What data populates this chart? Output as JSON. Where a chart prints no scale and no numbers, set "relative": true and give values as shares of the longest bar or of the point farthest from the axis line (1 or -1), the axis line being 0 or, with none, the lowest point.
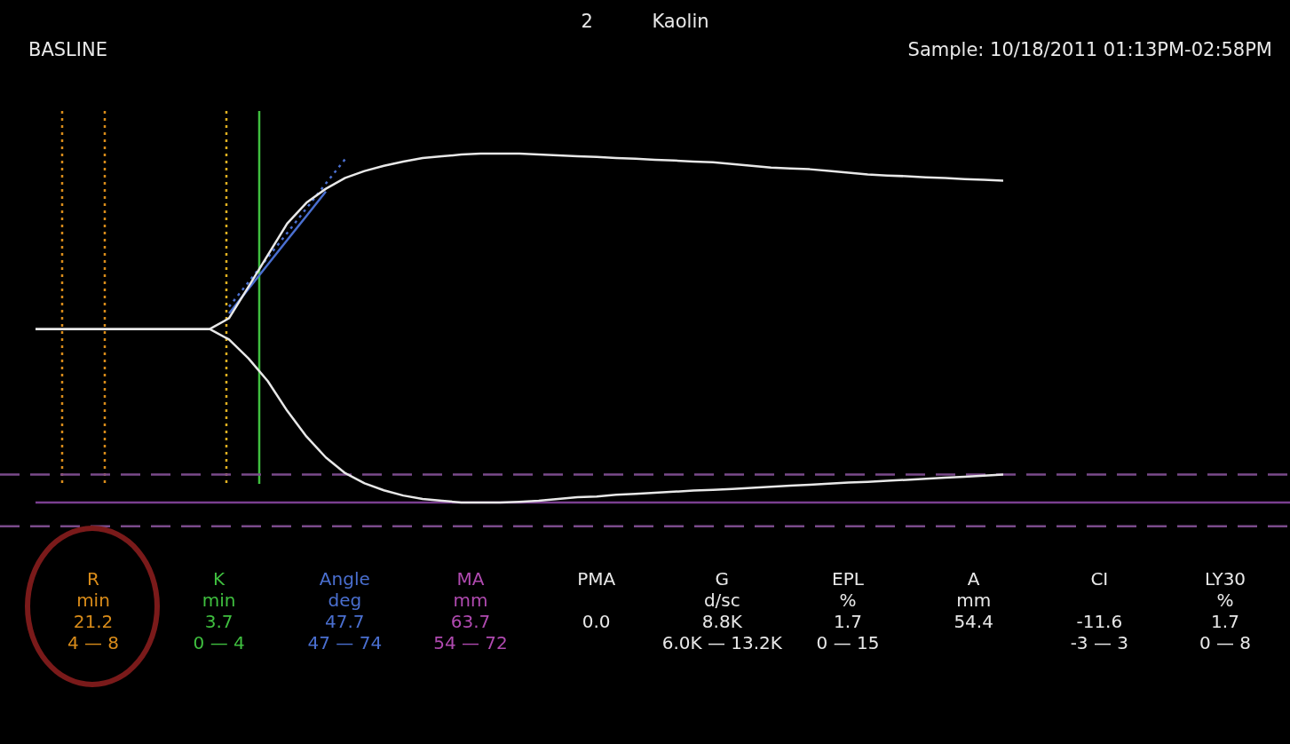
{
  "chart_data": [
    {
      "type": "line",
      "title": "2 Kaolin",
      "annotations": [
        "BASLINE",
        "Sample: 10/18/2011 01:13PM-02:58PM"
      ],
      "relative": true,
      "legend": false,
      "tick_labels": false,
      "marker": "none",
      "categories": [
        null,
        null,
        null,
        null,
        null,
        null,
        null,
        null,
        null,
        null,
        null,
        null,
        null,
        null,
        null,
        null,
        null,
        null,
        null,
        null,
        null,
        null,
        null,
        null,
        null,
        null,
        null,
        null,
        null,
        null,
        null,
        null,
        null,
        null,
        null,
        null,
        null,
        null,
        null,
        null,
        null,
        null,
        null,
        null,
        null,
        null,
        null,
        null,
        null,
        null,
        null
      ],
      "series": [
        {
          "color": "#e8e8e8",
          "line_style": "solid",
          "values": [
            0.497,
            0.497,
            0.497,
            0.497,
            0.497,
            0.497,
            0.497,
            0.497,
            0.497,
            0.497,
            0.528,
            0.618,
            0.709,
            0.799,
            0.859,
            0.899,
            0.93,
            0.95,
            0.965,
            0.977,
            0.987,
            0.992,
            0.997,
            1,
            1,
            1,
            0.997,
            0.995,
            0.992,
            0.99,
            0.987,
            0.985,
            0.982,
            0.98,
            0.977,
            0.975,
            0.97,
            0.965,
            0.96,
            0.957,
            0.955,
            0.95,
            0.945,
            0.94,
            0.937,
            0.935,
            0.932,
            0.93,
            0.927,
            0.925,
            0.922
          ]
        },
        {
          "color": "#e8e8e8",
          "line_style": "solid",
          "values": [
            0.497,
            0.497,
            0.497,
            0.497,
            0.497,
            0.497,
            0.497,
            0.497,
            0.497,
            0.497,
            0.467,
            0.413,
            0.348,
            0.263,
            0.189,
            0.129,
            0.084,
            0.055,
            0.035,
            0.02,
            0.01,
            0.005,
            0,
            0,
            0,
            0.002,
            0.005,
            0.01,
            0.015,
            0.017,
            0.022,
            0.025,
            0.028,
            0.031,
            0.034,
            0.036,
            0.039,
            0.042,
            0.045,
            0.048,
            0.051,
            0.054,
            0.057,
            0.059,
            0.062,
            0.065,
            0.068,
            0.071,
            0.074,
            0.077,
            0.08
          ]
        },
        {
          "color": "#4a6fd0",
          "line_style": "dotted",
          "values": [
            null,
            null,
            null,
            null,
            null,
            null,
            null,
            null,
            null,
            null,
            0.561,
            0.631,
            0.702,
            0.772,
            0.843,
            0.914,
            0.984,
            null,
            null,
            null,
            null,
            null,
            null,
            null,
            null,
            null,
            null,
            null,
            null,
            null,
            null,
            null,
            null,
            null,
            null,
            null,
            null,
            null,
            null,
            null,
            null,
            null,
            null,
            null,
            null,
            null,
            null,
            null,
            null,
            null,
            null
          ]
        },
        {
          "color": "#4a6fd0",
          "line_style": "solid",
          "values": [
            null,
            null,
            null,
            null,
            null,
            null,
            null,
            null,
            null,
            null,
            0.542,
            0.612,
            0.682,
            0.752,
            0.821,
            0.891,
            null,
            null,
            null,
            null,
            null,
            null,
            null,
            null,
            null,
            null,
            null,
            null,
            null,
            null,
            null,
            null,
            null,
            null,
            null,
            null,
            null,
            null,
            null,
            null,
            null,
            null,
            null,
            null,
            null,
            null,
            null,
            null,
            null,
            null,
            null
          ]
        }
      ],
      "ref_lines": [
        {
          "axis": "y",
          "value": 0.08,
          "color": "#7a4a8a",
          "line_style": "dashed"
        },
        {
          "axis": "y",
          "value": -0.068,
          "color": "#7a4a8a",
          "line_style": "dashed"
        }
      ]
    },
    {
      "type": "other",
      "annotations": [
        "R\nmin\n21.2\n4 — 8",
        "K\nmin\n3.7\n0 — 4",
        "Angle\ndeg\n47.7\n47 — 74",
        "MA\nmm\n63.7\n54 — 72",
        "PMA\n\n0.0\n",
        "G\nd/sc\n8.8K\n6.0K — 13.2K",
        "EPL\n%\n1.7\n0 — 15",
        "A\nmm\n54.4\n",
        "CI\n\n-11.6\n-3 — 3",
        "LY30\n%\n1.7\n0 — 8"
      ],
      "colors": [
        "#d98c1a",
        "#3fbf3f",
        "#4a6fd0",
        "#b04ab0",
        "#e8e8e8",
        "#e8e8e8",
        "#e8e8e8",
        "#e8e8e8",
        "#e8e8e8",
        "#e8e8e8"
      ]
    }
  ]
}
